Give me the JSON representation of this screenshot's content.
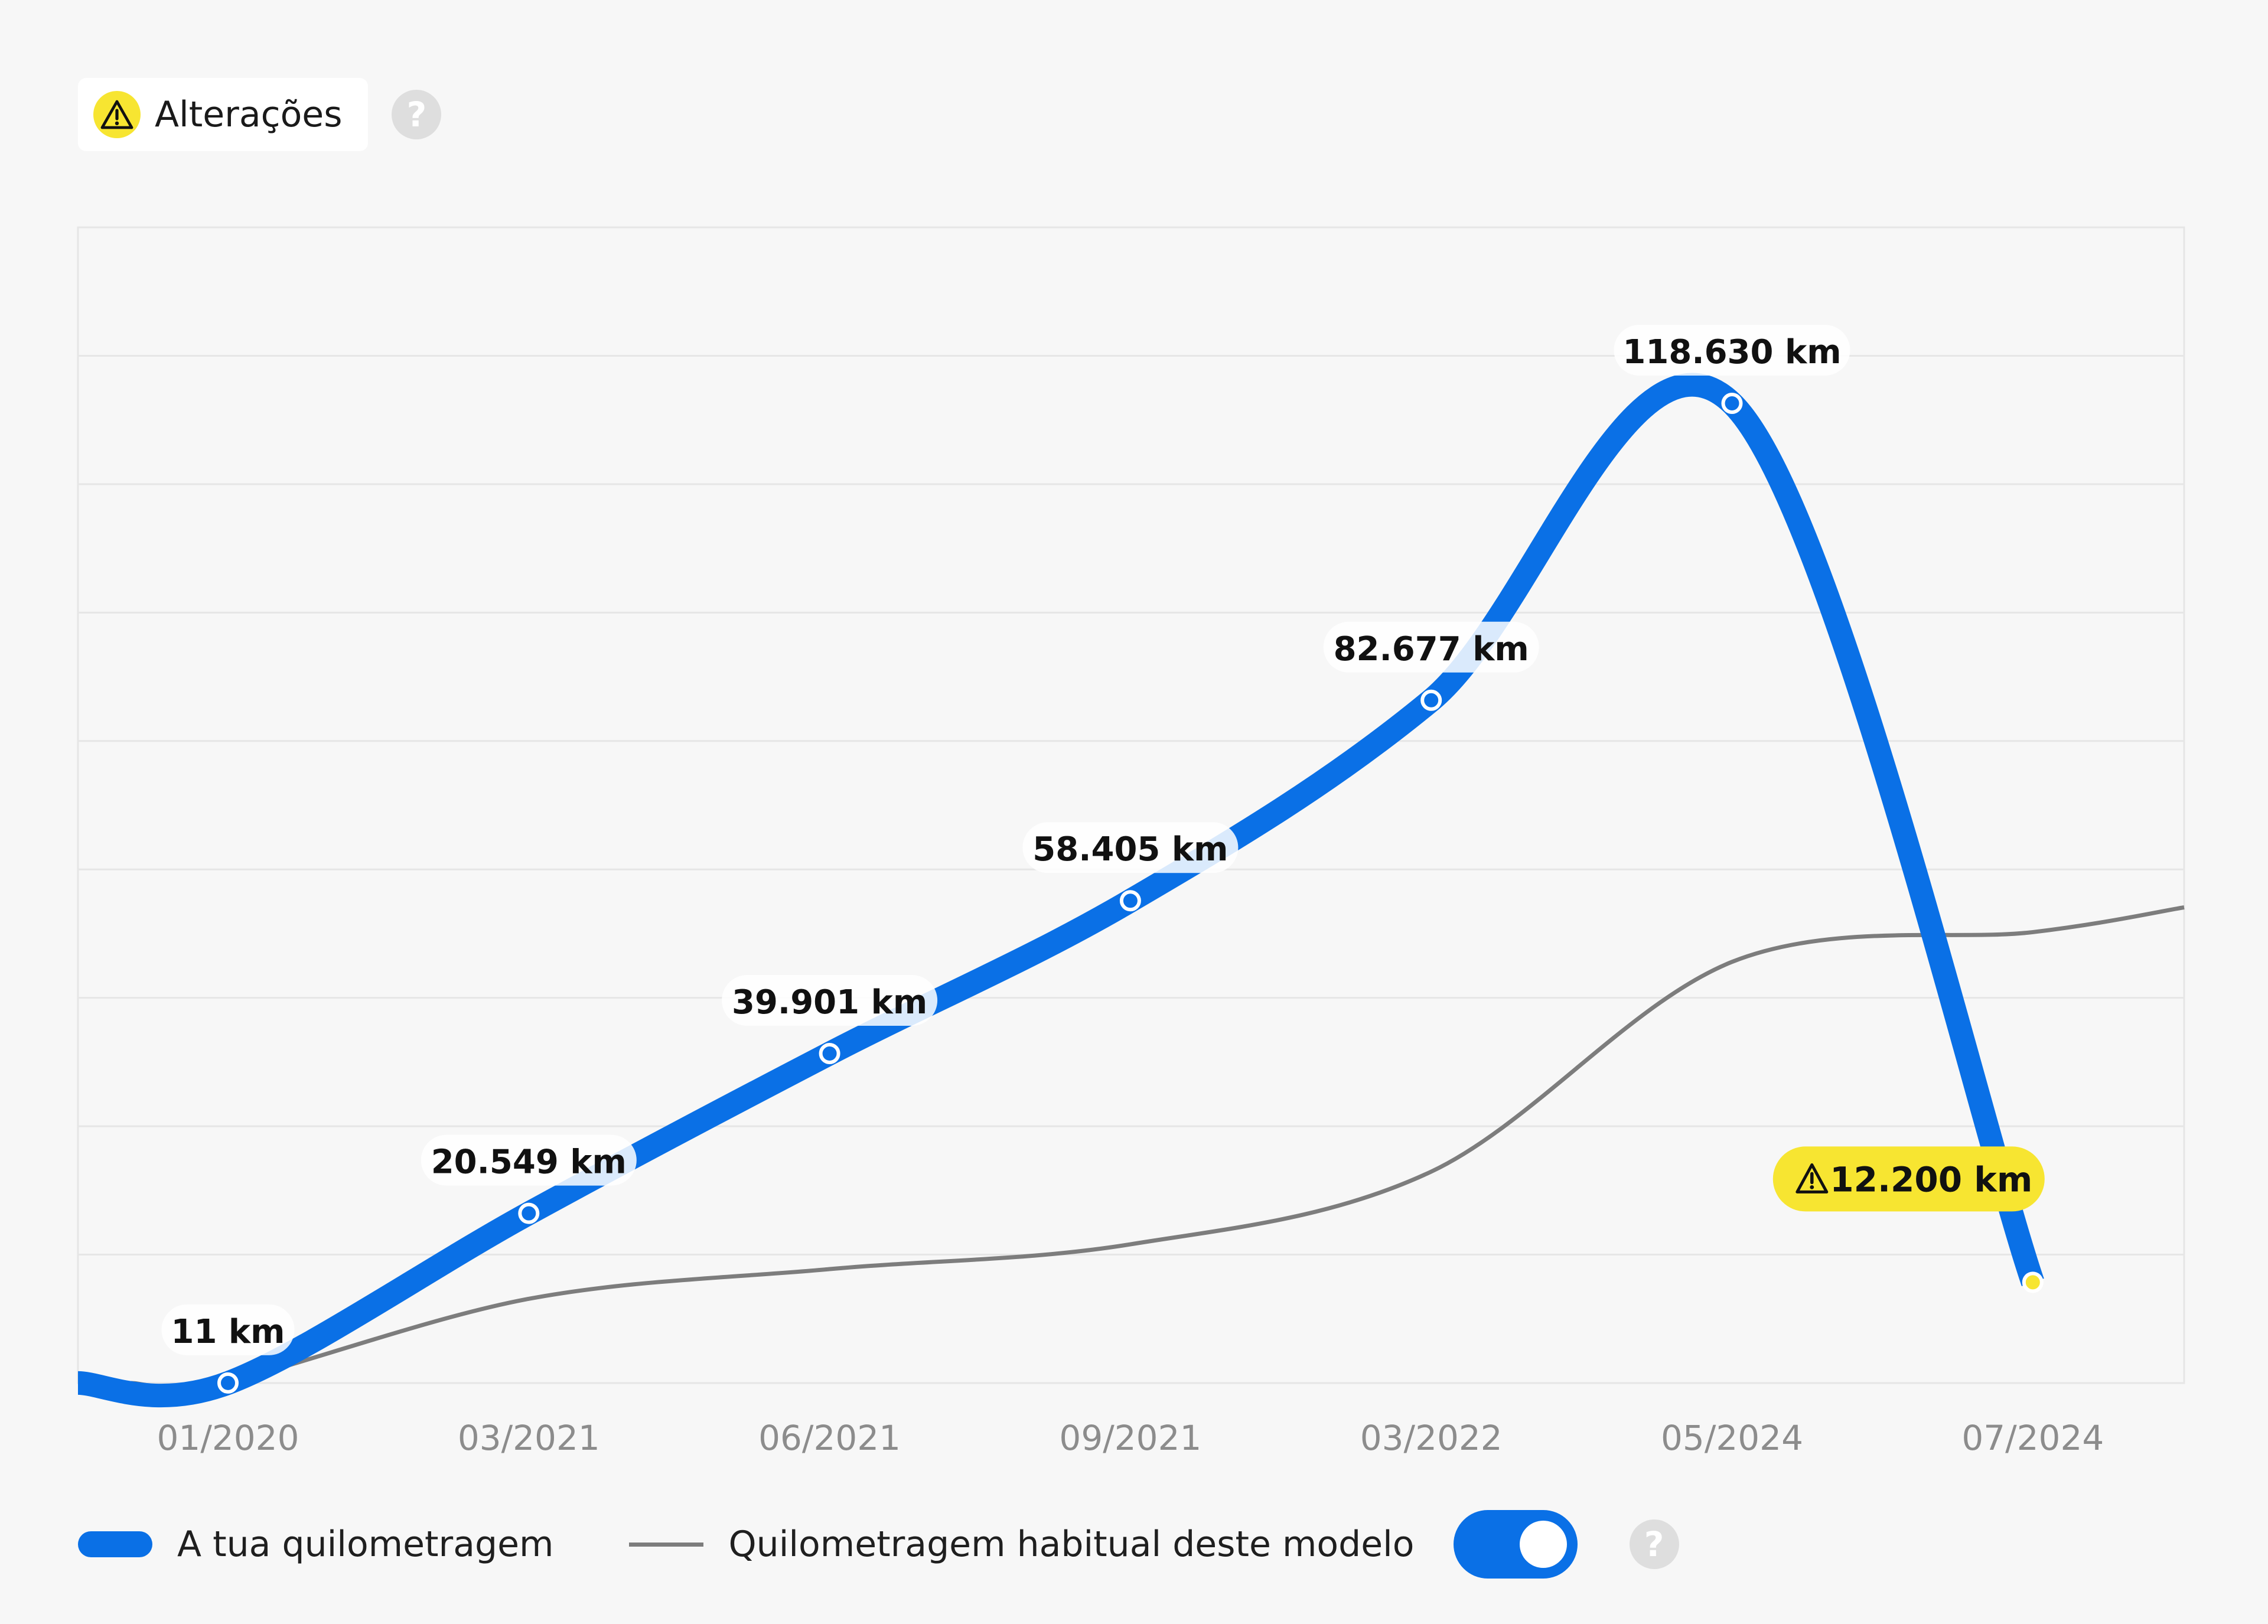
{
  "header": {
    "alteracoes_label": "Alterações",
    "warning_icon": "warning-icon",
    "help_icon": "question-mark-icon"
  },
  "colors": {
    "primary_line": "#0a70e6",
    "average_line": "#7d7d7d",
    "warning": "#f7e531",
    "background": "#f7f7f7",
    "grid": "#e6e6e6"
  },
  "chart_data": {
    "type": "line",
    "title": "",
    "xlabel": "",
    "ylabel": "",
    "categories": [
      "01/2020",
      "03/2021",
      "06/2021",
      "09/2021",
      "03/2022",
      "05/2024",
      "07/2024"
    ],
    "grid": true,
    "legend_position": "bottom-left",
    "series": [
      {
        "name": "A tua quilometragem",
        "values": [
          11,
          20549,
          39901,
          58405,
          82677,
          118630,
          12200
        ],
        "labels": [
          "11 km",
          "20.549 km",
          "39.901 km",
          "58.405 km",
          "82.677 km",
          "118.630 km",
          "12.200 km"
        ],
        "warning_point": 6
      },
      {
        "name": "Quilometragem habitual deste modelo",
        "values": [
          200,
          10200,
          13800,
          16800,
          25600,
          51000,
          54600
        ]
      }
    ],
    "ylim": [
      0,
      135000
    ]
  },
  "legend": {
    "own_label": "A tua quilometragem",
    "average_label": "Quilometragem habitual deste modelo",
    "toggle_on": true
  }
}
